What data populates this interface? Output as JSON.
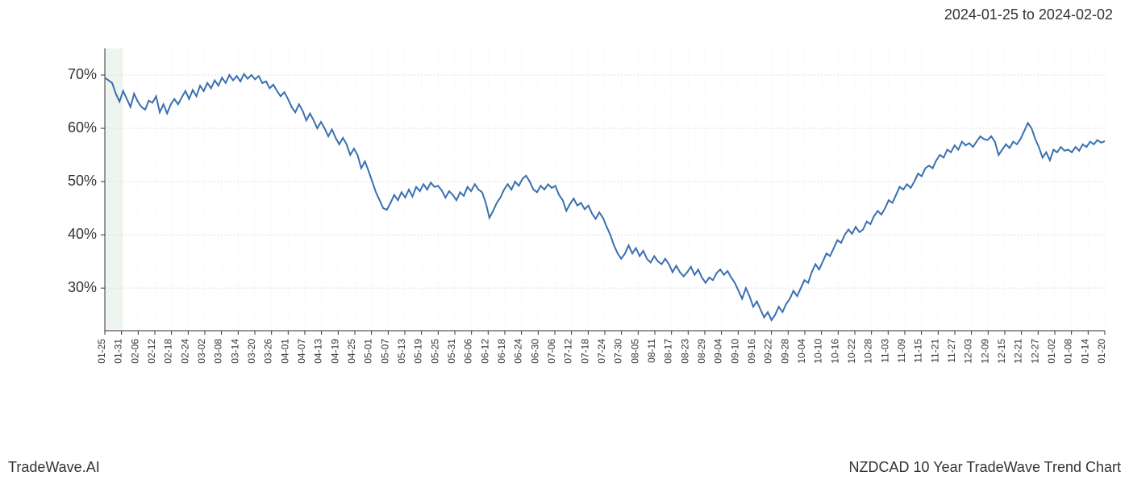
{
  "header": {
    "date_range": "2024-01-25 to 2024-02-02"
  },
  "footer": {
    "left": "TradeWave.AI",
    "right": "NZDCAD 10 Year TradeWave Trend Chart"
  },
  "chart": {
    "type": "line",
    "background_color": "#ffffff",
    "grid_major_color": "#e0e0e0",
    "grid_minor_color": "#f0f0f0",
    "axis_color": "#333333",
    "line_color": "#3a6fb0",
    "line_width": 2,
    "highlight_band_color": "#c8deca",
    "highlight_band": {
      "start_index": 0,
      "end_index": 5
    },
    "ylim": [
      22,
      75
    ],
    "y_ticks": [
      30,
      40,
      50,
      60,
      70
    ],
    "y_tick_suffix": "%",
    "x_labels_shown": [
      "01-25",
      "01-31",
      "02-06",
      "02-12",
      "02-18",
      "02-24",
      "03-02",
      "03-08",
      "03-14",
      "03-20",
      "03-26",
      "04-01",
      "04-07",
      "04-13",
      "04-19",
      "04-25",
      "05-01",
      "05-07",
      "05-13",
      "05-19",
      "05-25",
      "05-31",
      "06-06",
      "06-12",
      "06-18",
      "06-24",
      "06-30",
      "07-06",
      "07-12",
      "07-18",
      "07-24",
      "07-30",
      "08-05",
      "08-11",
      "08-17",
      "08-23",
      "08-29",
      "09-04",
      "09-10",
      "09-16",
      "09-22",
      "09-28",
      "10-04",
      "10-10",
      "10-16",
      "10-22",
      "10-28",
      "11-03",
      "11-09",
      "11-15",
      "11-21",
      "11-27",
      "12-03",
      "12-09",
      "12-15",
      "12-21",
      "12-27",
      "01-02",
      "01-08",
      "01-14",
      "01-20"
    ],
    "x_label_step_days": 6,
    "tick_label_fontsize": 12,
    "y_label_fontsize": 18,
    "values": [
      69.5,
      69.0,
      68.5,
      66.5,
      65.0,
      67.0,
      65.5,
      64.0,
      66.5,
      65.0,
      64.0,
      63.5,
      65.2,
      64.8,
      66.0,
      63.0,
      64.5,
      62.8,
      64.5,
      65.5,
      64.5,
      65.8,
      67.0,
      65.5,
      67.2,
      66.0,
      68.0,
      67.0,
      68.5,
      67.5,
      69.0,
      68.0,
      69.5,
      68.5,
      70.0,
      69.0,
      69.8,
      68.8,
      70.2,
      69.3,
      70.0,
      69.2,
      69.8,
      68.5,
      68.8,
      67.5,
      68.2,
      67.0,
      66.0,
      66.8,
      65.5,
      64.0,
      63.0,
      64.5,
      63.3,
      61.5,
      62.8,
      61.5,
      60.0,
      61.2,
      60.0,
      58.5,
      59.8,
      58.2,
      57.0,
      58.2,
      57.0,
      55.0,
      56.2,
      55.0,
      52.5,
      53.8,
      52.0,
      50.0,
      48.0,
      46.5,
      45.0,
      44.7,
      46.0,
      47.5,
      46.5,
      48.0,
      47.0,
      48.5,
      47.2,
      49.0,
      48.2,
      49.5,
      48.5,
      49.8,
      49.0,
      49.2,
      48.3,
      47.0,
      48.2,
      47.5,
      46.5,
      48.0,
      47.3,
      49.0,
      48.2,
      49.5,
      48.5,
      48.0,
      46.0,
      43.2,
      44.5,
      46.0,
      47.0,
      48.5,
      49.5,
      48.5,
      50.0,
      49.2,
      50.5,
      51.1,
      50.0,
      48.5,
      48.0,
      49.2,
      48.5,
      49.5,
      48.8,
      49.2,
      47.5,
      46.5,
      44.5,
      45.8,
      46.8,
      45.5,
      46.0,
      44.8,
      45.5,
      44.0,
      43.0,
      44.2,
      43.2,
      41.5,
      40.0,
      38.0,
      36.5,
      35.5,
      36.5,
      38.0,
      36.5,
      37.5,
      36.0,
      37.0,
      35.5,
      34.8,
      36.0,
      35.0,
      34.5,
      35.5,
      34.5,
      33.0,
      34.2,
      33.0,
      32.2,
      33.0,
      34.0,
      32.5,
      33.5,
      32.0,
      31.0,
      32.0,
      31.5,
      32.8,
      33.5,
      32.5,
      33.2,
      32.0,
      31.0,
      29.5,
      28.0,
      30.0,
      28.5,
      26.5,
      27.5,
      26.0,
      24.5,
      25.5,
      24.0,
      25.0,
      26.5,
      25.5,
      27.0,
      28.0,
      29.5,
      28.5,
      30.0,
      31.5,
      31.0,
      33.0,
      34.5,
      33.5,
      35.0,
      36.5,
      36.0,
      37.5,
      39.0,
      38.5,
      40.0,
      41.0,
      40.2,
      41.5,
      40.5,
      41.0,
      42.5,
      42.0,
      43.5,
      44.5,
      43.8,
      45.0,
      46.5,
      46.0,
      47.5,
      49.0,
      48.5,
      49.5,
      48.8,
      50.0,
      51.5,
      51.0,
      52.5,
      53.0,
      52.5,
      54.0,
      55.0,
      54.5,
      56.0,
      55.5,
      56.8,
      56.0,
      57.5,
      56.8,
      57.2,
      56.5,
      57.5,
      58.5,
      58.0,
      57.8,
      58.5,
      57.5,
      55.0,
      56.0,
      57.0,
      56.3,
      57.5,
      57.0,
      58.0,
      59.5,
      61.0,
      60.0,
      58.0,
      56.5,
      54.5,
      55.5,
      54.0,
      56.0,
      55.5,
      56.5,
      55.8,
      56.0,
      55.5,
      56.5,
      55.8,
      57.0,
      56.5,
      57.5,
      57.0,
      57.8,
      57.3,
      57.6
    ]
  }
}
